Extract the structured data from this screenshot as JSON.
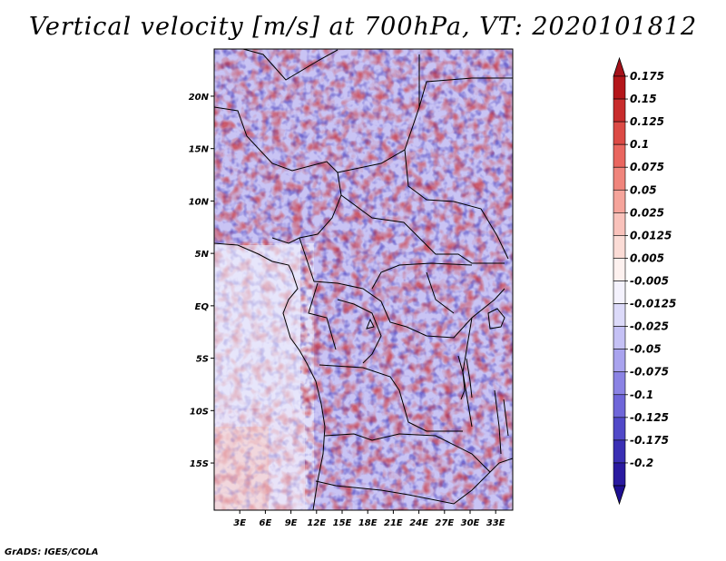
{
  "title": "Vertical velocity [m/s] at 700hPa, VT: 2020101812",
  "credit": "GrADS: IGES/COLA",
  "map": {
    "lat_labels": [
      "20N",
      "15N",
      "10N",
      "5N",
      "EQ",
      "5S",
      "10S",
      "15S"
    ],
    "lon_labels": [
      "3E",
      "6E",
      "9E",
      "12E",
      "15E",
      "18E",
      "21E",
      "24E",
      "27E",
      "30E",
      "33E"
    ],
    "lon_range": [
      0,
      35
    ],
    "lat_range": [
      -19.5,
      24.5
    ]
  },
  "colorbar": {
    "labels": [
      "0.175",
      "0.15",
      "0.125",
      "0.1",
      "0.075",
      "0.05",
      "0.025",
      "0.0125",
      "0.005",
      "-0.005",
      "-0.0125",
      "-0.025",
      "-0.05",
      "-0.075",
      "-0.1",
      "-0.125",
      "-0.175",
      "-0.2"
    ],
    "colors": [
      "#b4161a",
      "#c82c2c",
      "#dc4a45",
      "#e9665f",
      "#f0857c",
      "#f5a49b",
      "#f9c2bb",
      "#fbdcd6",
      "#fdf1ef",
      "#f4f2fd",
      "#dcdaf9",
      "#c5c1f5",
      "#a9a3ee",
      "#8b83e4",
      "#6f66d9",
      "#5149c8",
      "#3a2fb4",
      "#2a1aa0"
    ],
    "upper_extend_color": "#a5121a",
    "lower_extend_color": "#1e0f92"
  }
}
